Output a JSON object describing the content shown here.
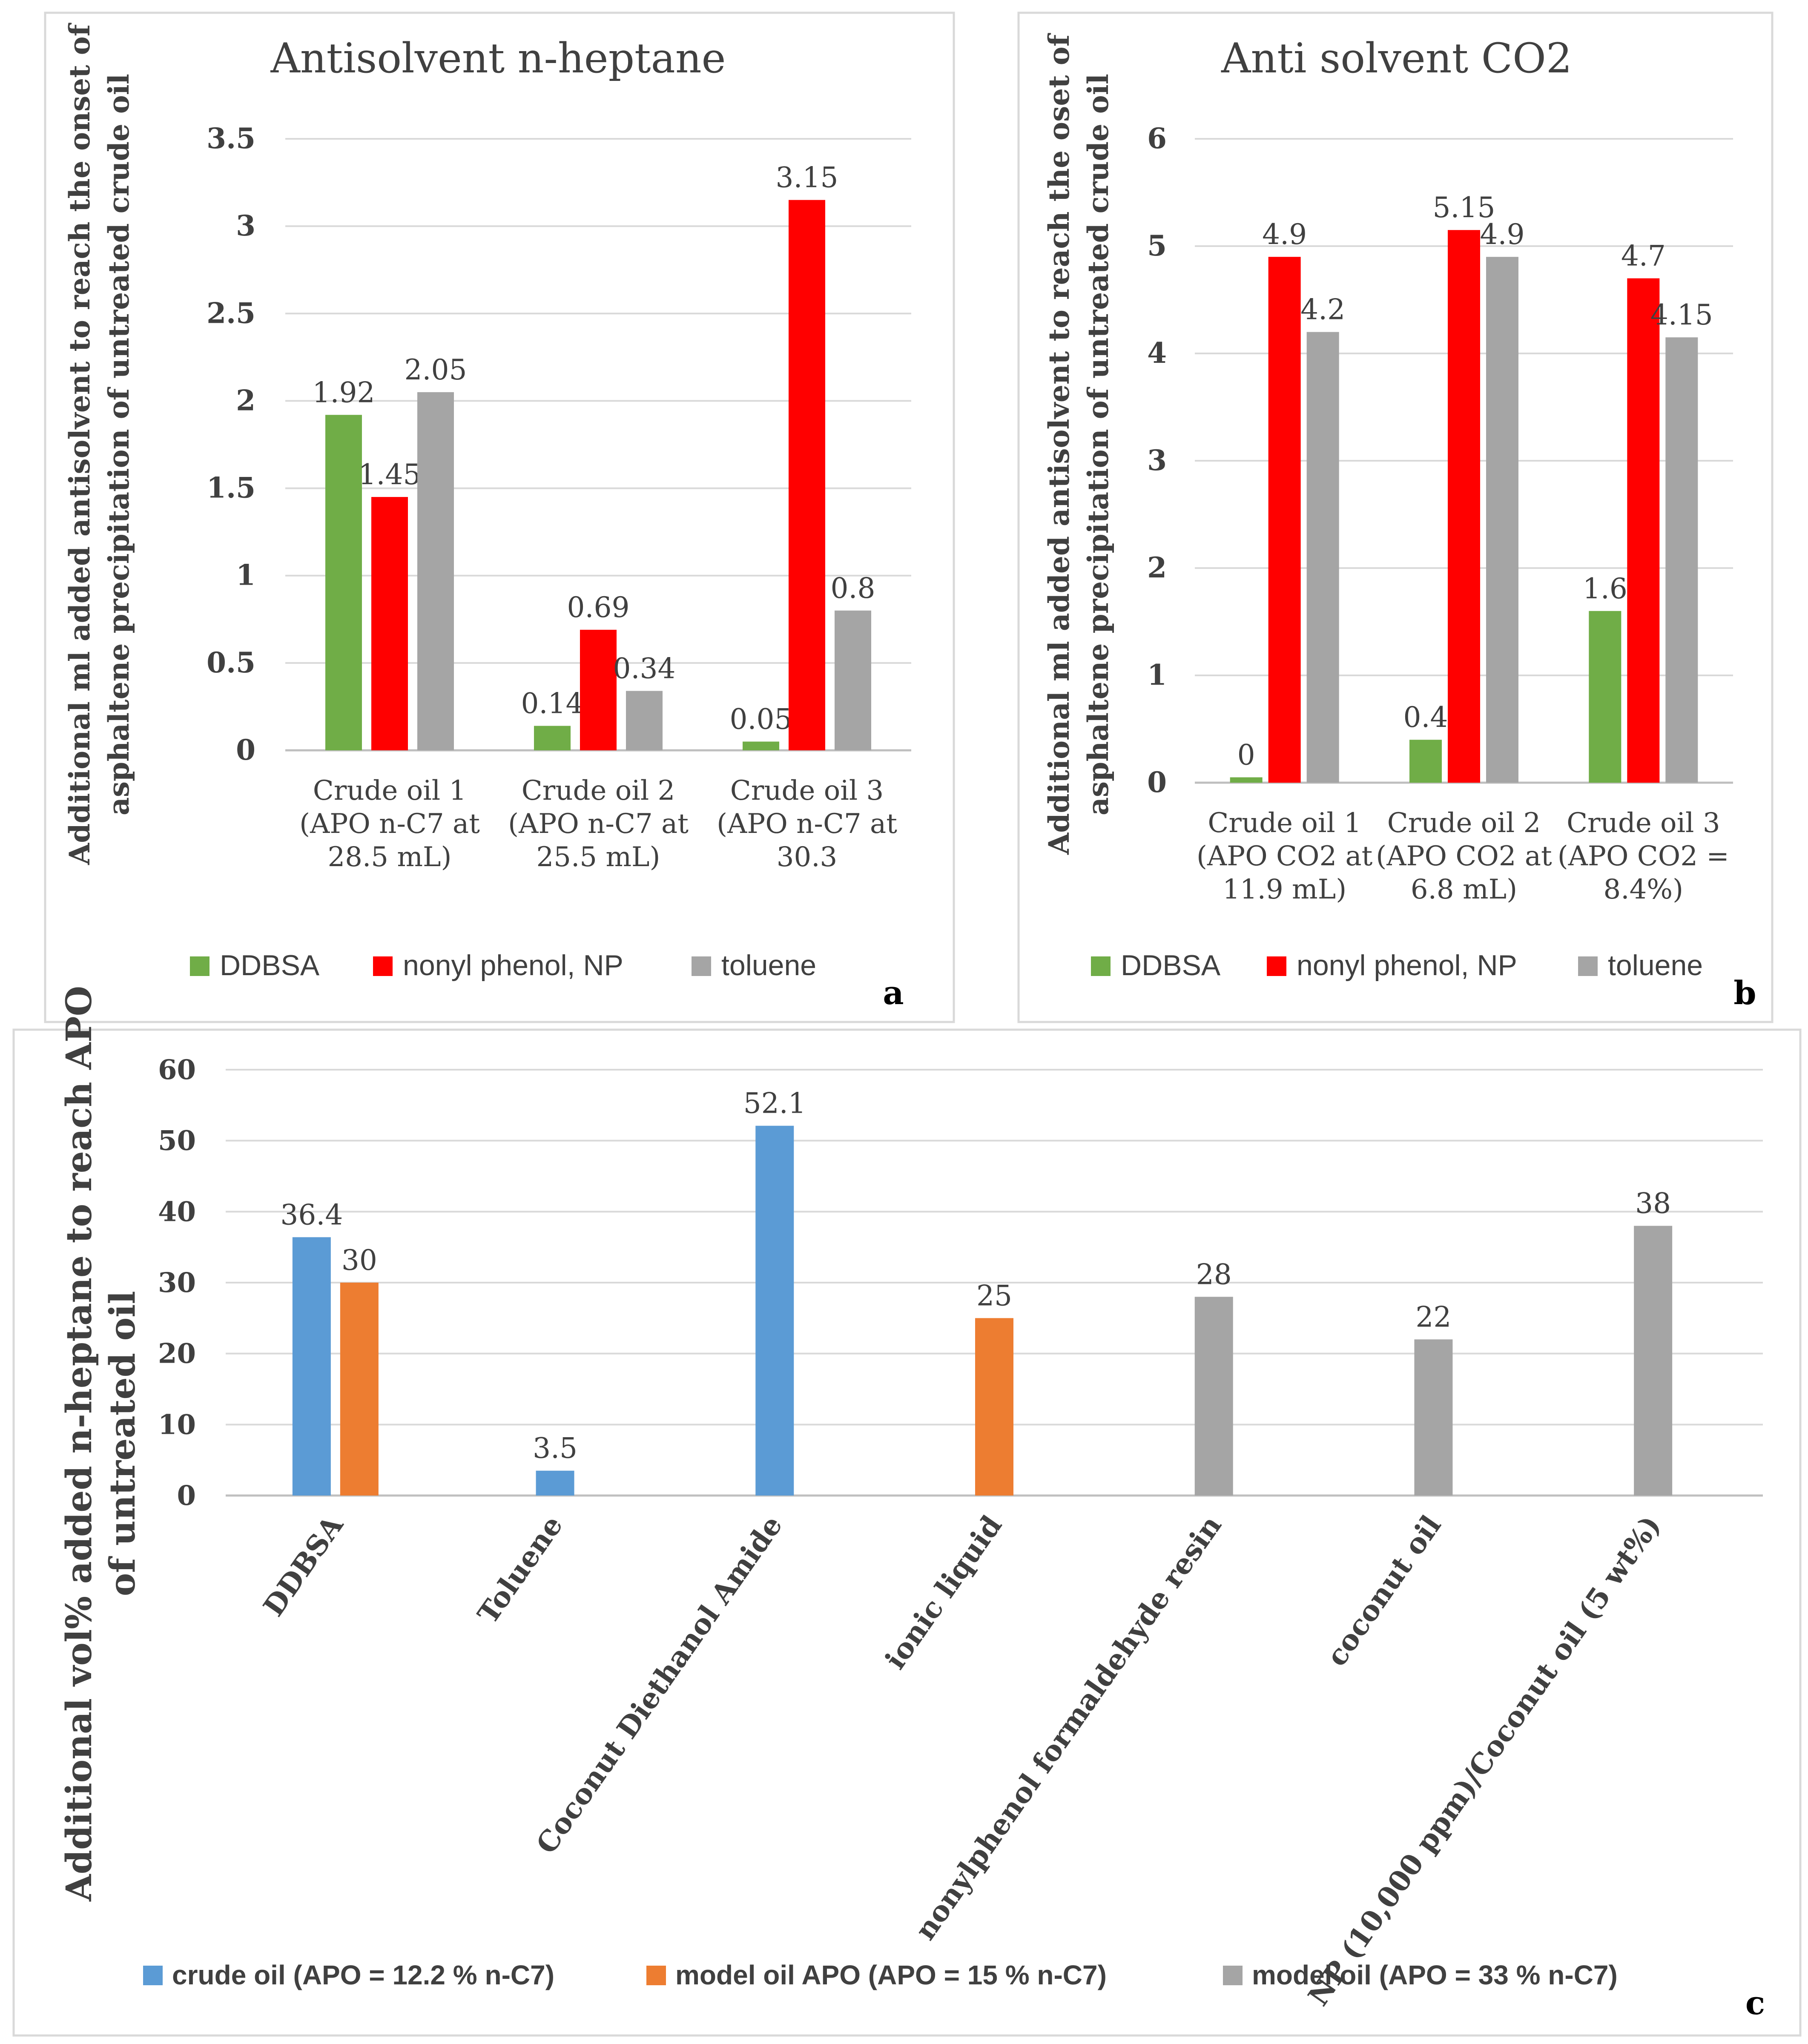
{
  "colors": {
    "green": "#70ad47",
    "red": "#ff0000",
    "gray": "#a5a5a5",
    "blue": "#5b9bd5",
    "orange": "#ed7d31"
  },
  "panels": {
    "a": {
      "letter": "a"
    },
    "b": {
      "letter": "b"
    },
    "c": {
      "letter": "c"
    }
  },
  "chart_data": [
    {
      "id": "a",
      "type": "bar",
      "title": "Antisolvent n-heptane",
      "ylabel": [
        "Additional  ml added antisolvent to reach the onset of",
        "asphaltene precipitation of untreated crude oil"
      ],
      "xlabel": "",
      "ylim": [
        0,
        3.5
      ],
      "yticks": [
        "0",
        "0.5",
        "1",
        "1.5",
        "2",
        "2.5",
        "3",
        "3.5"
      ],
      "categories": [
        [
          "Crude oil 1",
          "(APO n-C7 at",
          "28.5  mL)"
        ],
        [
          "Crude oil 2",
          "(APO n-C7 at",
          "25.5  mL)"
        ],
        [
          "Crude oil 3",
          "(APO n-C7 at",
          "30.3"
        ]
      ],
      "series": [
        {
          "name": "DDBSA",
          "color": "#70ad47",
          "values": [
            1.92,
            0.14,
            0.05
          ],
          "labels": [
            "1.92",
            "0.14",
            "0.05"
          ]
        },
        {
          "name": "nonyl phenol, NP",
          "color": "#ff0000",
          "values": [
            1.45,
            0.69,
            3.15
          ],
          "labels": [
            "1.45",
            "0.69",
            "3.15"
          ]
        },
        {
          "name": "toluene",
          "color": "#a5a5a5",
          "values": [
            2.05,
            0.34,
            0.8
          ],
          "labels": [
            "2.05",
            "0.34",
            "0.8"
          ]
        }
      ],
      "legend": "bottom"
    },
    {
      "id": "b",
      "type": "bar",
      "title": "Anti solvent CO2",
      "ylabel": [
        "Additional ml added antisolvent to reach the oset of",
        "asphaltene precipitation of untreated crude oil"
      ],
      "xlabel": "",
      "ylim": [
        0,
        6
      ],
      "yticks": [
        "0",
        "1",
        "2",
        "3",
        "4",
        "5",
        "6"
      ],
      "categories": [
        [
          "Crude oil 1",
          "(APO CO2 at",
          "11.9  mL)"
        ],
        [
          "Crude oil 2",
          "(APO CO2 at",
          "6.8  mL)"
        ],
        [
          "Crude oil 3",
          "(APO CO2 =",
          "8.4%)"
        ]
      ],
      "series": [
        {
          "name": "DDBSA",
          "color": "#70ad47",
          "values": [
            0.05,
            0.4,
            1.6
          ],
          "labels": [
            "0",
            "0.4",
            "1.6"
          ]
        },
        {
          "name": "nonyl phenol, NP",
          "color": "#ff0000",
          "values": [
            4.9,
            5.15,
            4.7
          ],
          "labels": [
            "4.9",
            "5.15",
            "4.7"
          ]
        },
        {
          "name": "toluene",
          "color": "#a5a5a5",
          "values": [
            4.2,
            4.9,
            4.15
          ],
          "labels": [
            "4.2",
            "4.9",
            "4.15"
          ]
        }
      ],
      "legend": "bottom"
    },
    {
      "id": "c",
      "type": "bar",
      "title": "",
      "ylabel": [
        "Additional vol% added n-heptane to reach APO",
        "of untreated oil"
      ],
      "xlabel": "",
      "ylim": [
        0,
        60
      ],
      "yticks": [
        "0",
        "10",
        "20",
        "30",
        "40",
        "50",
        "60"
      ],
      "categories": [
        "DDBSA",
        "Toluene",
        "Coconut Diethanol Amide",
        "ionic liquid",
        "nonylphenol formaldehyde resin",
        "coconut oil",
        "NP (10,000 ppm)/Coconut oil (5 wt%)"
      ],
      "series": [
        {
          "name": "crude oil (APO = 12.2 % n-C7)",
          "color": "#5b9bd5",
          "values": [
            36.4,
            3.5,
            52.1,
            null,
            null,
            null,
            null
          ],
          "labels": [
            "36.4",
            "3.5",
            "52.1",
            null,
            null,
            null,
            null
          ]
        },
        {
          "name": "model oil APO  (APO = 15 % n-C7)",
          "color": "#ed7d31",
          "values": [
            30,
            null,
            null,
            25,
            null,
            null,
            null
          ],
          "labels": [
            "30",
            null,
            null,
            "25",
            null,
            null,
            null
          ]
        },
        {
          "name": "model oil  (APO = 33 % n-C7)",
          "color": "#a5a5a5",
          "values": [
            null,
            null,
            null,
            null,
            28,
            22,
            38
          ],
          "labels": [
            null,
            null,
            null,
            null,
            "28",
            "22",
            "38"
          ]
        }
      ],
      "legend": "bottom"
    }
  ]
}
